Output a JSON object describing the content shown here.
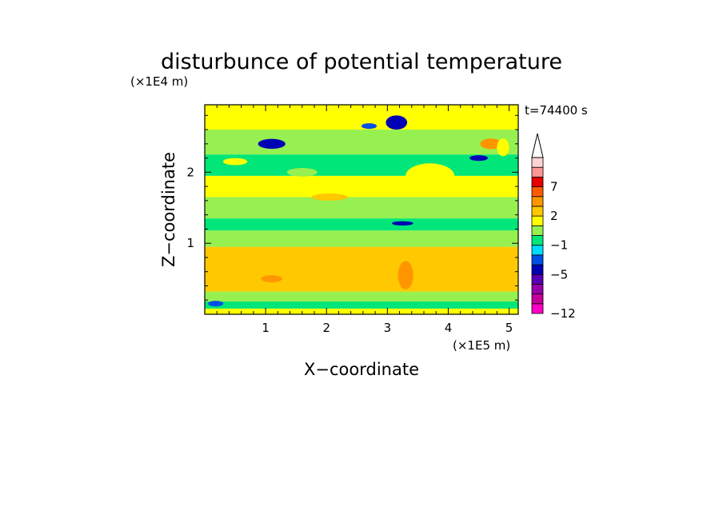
{
  "chart_data": {
    "type": "heatmap",
    "title": "disturbunce of potential temperature",
    "xlabel": "X−coordinate",
    "ylabel": "Z−coordinate",
    "x_unit_label": "(×1E5 m)",
    "y_unit_label": "(×1E4 m)",
    "time_label": "t=74400 s",
    "xlim": [
      0,
      5.15
    ],
    "ylim": [
      0,
      2.95
    ],
    "x_ticks": [
      "1",
      "2",
      "3",
      "4",
      "5"
    ],
    "y_ticks": [
      "1",
      "2"
    ],
    "x_tick_values": [
      1,
      2,
      3,
      4,
      5
    ],
    "y_tick_values": [
      1,
      2
    ],
    "colorbar": {
      "labels": [
        "7",
        "2",
        "−1",
        "−5",
        "−12"
      ],
      "label_values": [
        7,
        2,
        -1,
        -5,
        -12
      ],
      "levels": [
        -12,
        -10,
        -8,
        -6,
        -5,
        -3,
        -2,
        -1,
        0,
        1,
        2,
        3,
        5,
        7,
        9,
        11
      ],
      "colors": [
        "#ff00c8",
        "#c8009b",
        "#9600aa",
        "#5a00b4",
        "#0000b4",
        "#0050e6",
        "#00dcff",
        "#00e678",
        "#96f050",
        "#ffff00",
        "#ffc800",
        "#ff9600",
        "#ff5a00",
        "#e60000",
        "#ff9696",
        "#ffd2d2"
      ],
      "extend": "max"
    },
    "bands": [
      {
        "z": [
          0.0,
          0.08
        ],
        "value": 1.2
      },
      {
        "z": [
          0.08,
          0.18
        ],
        "value": -0.5
      },
      {
        "z": [
          0.18,
          0.32
        ],
        "value": 0.5
      },
      {
        "z": [
          0.32,
          0.95
        ],
        "value": 2.5
      },
      {
        "z": [
          0.95,
          1.18
        ],
        "value": 0.5
      },
      {
        "z": [
          1.18,
          1.35
        ],
        "value": -0.5
      },
      {
        "z": [
          1.35,
          1.65
        ],
        "value": 0.5
      },
      {
        "z": [
          1.65,
          1.95
        ],
        "value": 1.3
      },
      {
        "z": [
          1.95,
          2.25
        ],
        "value": -0.5
      },
      {
        "z": [
          2.25,
          2.6
        ],
        "value": 0.5
      },
      {
        "z": [
          2.6,
          2.95
        ],
        "value": 1.3
      }
    ],
    "features": [
      {
        "x": 0.18,
        "z": 0.15,
        "w": 0.25,
        "h": 0.08,
        "value": -3
      },
      {
        "x": 1.1,
        "z": 2.4,
        "w": 0.45,
        "h": 0.14,
        "value": -5
      },
      {
        "x": 2.7,
        "z": 2.65,
        "w": 0.25,
        "h": 0.08,
        "value": -3
      },
      {
        "x": 3.15,
        "z": 2.7,
        "w": 0.35,
        "h": 0.2,
        "value": -5
      },
      {
        "x": 4.5,
        "z": 2.2,
        "w": 0.3,
        "h": 0.08,
        "value": -5
      },
      {
        "x": 3.25,
        "z": 1.28,
        "w": 0.35,
        "h": 0.06,
        "value": -5
      },
      {
        "x": 4.7,
        "z": 2.4,
        "w": 0.35,
        "h": 0.15,
        "value": 3.5
      },
      {
        "x": 1.1,
        "z": 0.5,
        "w": 0.35,
        "h": 0.1,
        "value": 3.5
      },
      {
        "x": 3.3,
        "z": 0.55,
        "w": 0.25,
        "h": 0.4,
        "value": 3.5
      },
      {
        "x": 2.05,
        "z": 1.65,
        "w": 0.6,
        "h": 0.1,
        "value": 2.5
      },
      {
        "x": 1.6,
        "z": 2.0,
        "w": 0.5,
        "h": 0.12,
        "value": 0.5
      },
      {
        "x": 3.7,
        "z": 1.95,
        "w": 0.8,
        "h": 0.35,
        "value": 1.3
      },
      {
        "x": 0.5,
        "z": 2.15,
        "w": 0.4,
        "h": 0.1,
        "value": 1.3
      },
      {
        "x": 4.9,
        "z": 2.35,
        "w": 0.2,
        "h": 0.25,
        "value": 1.3
      }
    ],
    "grid": false
  }
}
